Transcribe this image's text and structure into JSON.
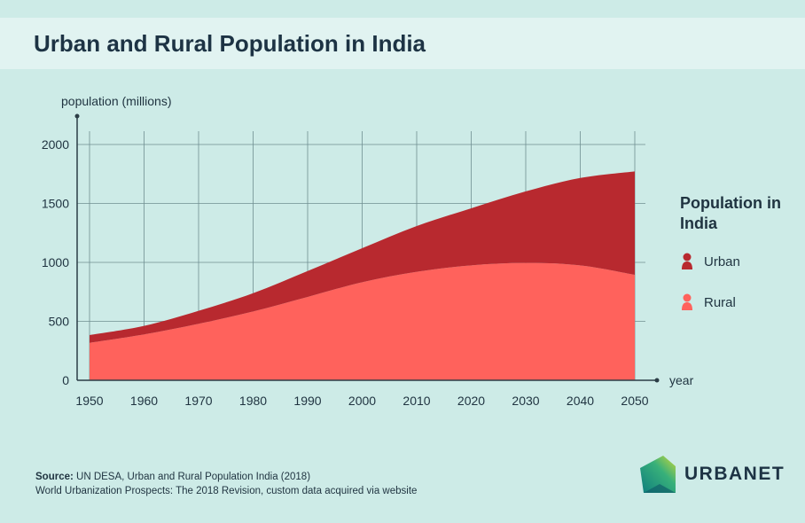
{
  "title": "Urban and Rural Population in India",
  "chart_data": {
    "type": "area",
    "stacked": true,
    "title": "Urban and Rural Population in India",
    "ylabel": "population (millions)",
    "xlabel": "year",
    "x": [
      1950,
      1960,
      1970,
      1980,
      1990,
      2000,
      2010,
      2020,
      2030,
      2040,
      2050
    ],
    "xticks": [
      "1950",
      "1960",
      "1970",
      "1980",
      "1990",
      "2000",
      "2010",
      "2020",
      "2030",
      "2040",
      "2050"
    ],
    "yticks": [
      "0",
      "500",
      "1000",
      "1500",
      "2000"
    ],
    "ylim": [
      0,
      2000
    ],
    "grid": true,
    "legend_title": "Population in India",
    "legend_position": "right",
    "series": [
      {
        "name": "Rural",
        "color": "#ff625c",
        "values": [
          318,
          389,
          479,
          584,
          707,
          832,
          920,
          975,
          995,
          975,
          895
        ]
      },
      {
        "name": "Urban",
        "color": "#b8292f",
        "values": [
          65,
          72,
          110,
          155,
          220,
          288,
          388,
          484,
          607,
          741,
          877
        ]
      }
    ]
  },
  "legend": {
    "title": "Population in India",
    "urban": "Urban",
    "rural": "Rural"
  },
  "source": {
    "label": "Source:",
    "line1": "UN DESA, Urban and Rural Population India (2018)",
    "line2": "World Urbanization Prospects: The 2018 Revision, custom data acquired via website"
  },
  "logo": {
    "text": "URBANET"
  }
}
